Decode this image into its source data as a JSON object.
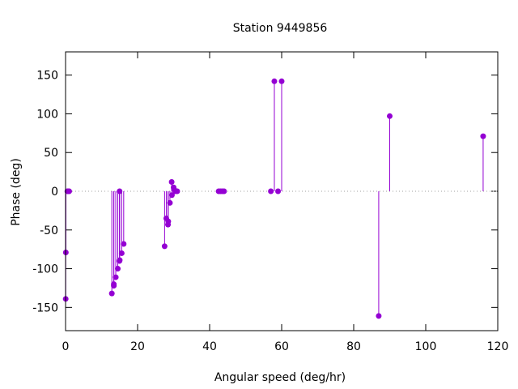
{
  "chart_data": {
    "type": "scatter",
    "style": "impulses-with-points",
    "title": "Station 9449856",
    "xlabel": "Angular speed (deg/hr)",
    "ylabel": "Phase (deg)",
    "xlim": [
      0,
      120
    ],
    "ylim": [
      -180,
      180
    ],
    "xticks": [
      0,
      20,
      40,
      60,
      80,
      100,
      120
    ],
    "yticks": [
      -150,
      -100,
      -50,
      0,
      50,
      100,
      150
    ],
    "zero_line": "dotted",
    "grid": false,
    "legend": "none",
    "colors": {
      "series": "#9400d3",
      "axis": "#000000",
      "zero_line": "#a0a0a0"
    },
    "series": [
      {
        "points": [
          {
            "x": 0.04,
            "y": -139
          },
          {
            "x": 0.08,
            "y": -79
          },
          {
            "x": 0.5,
            "y": 0
          },
          {
            "x": 0.82,
            "y": 0
          },
          {
            "x": 1.0,
            "y": 0
          },
          {
            "x": 12.85,
            "y": -132
          },
          {
            "x": 13.4,
            "y": -122
          },
          {
            "x": 13.4,
            "y": -120
          },
          {
            "x": 13.94,
            "y": -111
          },
          {
            "x": 14.5,
            "y": -100
          },
          {
            "x": 14.96,
            "y": -90
          },
          {
            "x": 15.0,
            "y": 0
          },
          {
            "x": 15.04,
            "y": -89
          },
          {
            "x": 15.59,
            "y": -80
          },
          {
            "x": 16.14,
            "y": -68
          },
          {
            "x": 27.5,
            "y": -71
          },
          {
            "x": 27.97,
            "y": -35
          },
          {
            "x": 28.44,
            "y": -43
          },
          {
            "x": 28.51,
            "y": -39
          },
          {
            "x": 28.98,
            "y": -15
          },
          {
            "x": 29.46,
            "y": 12
          },
          {
            "x": 29.53,
            "y": -5
          },
          {
            "x": 30.0,
            "y": 5
          },
          {
            "x": 30.08,
            "y": 3
          },
          {
            "x": 30.5,
            "y": 0
          },
          {
            "x": 31.0,
            "y": 0
          },
          {
            "x": 42.5,
            "y": 0
          },
          {
            "x": 43.0,
            "y": 0
          },
          {
            "x": 43.5,
            "y": 0
          },
          {
            "x": 44.0,
            "y": 0
          },
          {
            "x": 57.0,
            "y": 0
          },
          {
            "x": 57.97,
            "y": 142
          },
          {
            "x": 59.0,
            "y": 0
          },
          {
            "x": 60.0,
            "y": 142
          },
          {
            "x": 86.95,
            "y": -161
          },
          {
            "x": 90.0,
            "y": 97
          },
          {
            "x": 115.94,
            "y": 71
          }
        ]
      }
    ]
  }
}
